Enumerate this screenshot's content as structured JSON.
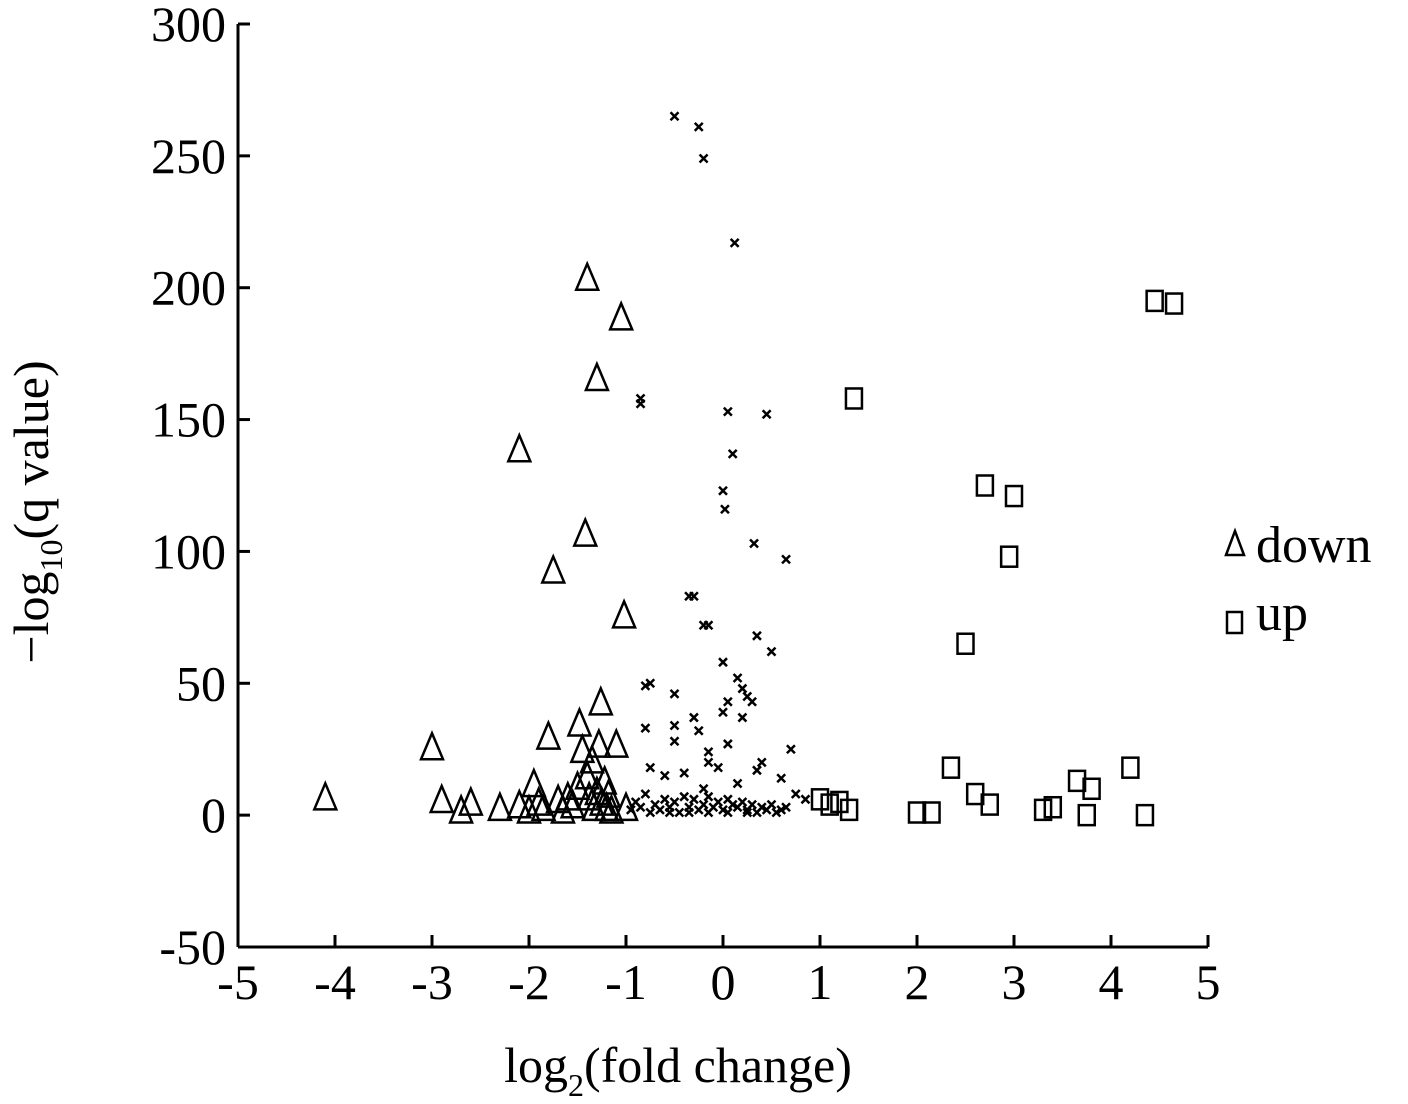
{
  "chart_data": {
    "type": "scatter",
    "title": "",
    "xlabel": {
      "prefix": "log",
      "sub": "2",
      "suffix": "(fold change)"
    },
    "ylabel": {
      "prefix": "−log",
      "sub": "10",
      "suffix": "(q value)"
    },
    "xlim": [
      -5,
      5
    ],
    "ylim": [
      -50,
      300
    ],
    "x_ticks": [
      -5,
      -4,
      -3,
      -2,
      -1,
      0,
      1,
      2,
      3,
      4,
      5
    ],
    "x_tick_labels": [
      "-5",
      "-4",
      "-3",
      "-2",
      "-1",
      "0",
      "1",
      "2",
      "3",
      "4",
      "5"
    ],
    "y_ticks": [
      -50,
      0,
      50,
      100,
      150,
      200,
      250,
      300
    ],
    "y_tick_labels": [
      "-50",
      "0",
      "50",
      "100",
      "150",
      "200",
      "250",
      "300"
    ],
    "grid": false,
    "legend_position": "right",
    "series": [
      {
        "name": "down",
        "marker": "triangle",
        "points": [
          [
            -4.1,
            6
          ],
          [
            -3.0,
            25
          ],
          [
            -2.9,
            5
          ],
          [
            -2.7,
            1
          ],
          [
            -2.6,
            4
          ],
          [
            -2.3,
            2
          ],
          [
            -2.1,
            138
          ],
          [
            -2.1,
            3
          ],
          [
            -2.0,
            1
          ],
          [
            -1.95,
            11
          ],
          [
            -1.9,
            4
          ],
          [
            -1.85,
            2
          ],
          [
            -1.8,
            29
          ],
          [
            -1.75,
            92
          ],
          [
            -1.7,
            5
          ],
          [
            -1.65,
            1
          ],
          [
            -1.6,
            6
          ],
          [
            -1.55,
            3
          ],
          [
            -1.5,
            10
          ],
          [
            -1.48,
            34
          ],
          [
            -1.45,
            24
          ],
          [
            -1.42,
            106
          ],
          [
            -1.4,
            203
          ],
          [
            -1.4,
            14
          ],
          [
            -1.38,
            6
          ],
          [
            -1.35,
            20
          ],
          [
            -1.33,
            2
          ],
          [
            -1.3,
            165
          ],
          [
            -1.3,
            8
          ],
          [
            -1.28,
            26
          ],
          [
            -1.26,
            42
          ],
          [
            -1.25,
            4
          ],
          [
            -1.22,
            12
          ],
          [
            -1.2,
            2
          ],
          [
            -1.18,
            7
          ],
          [
            -1.15,
            1
          ],
          [
            -1.1,
            26
          ],
          [
            -1.05,
            188
          ],
          [
            -1.02,
            75
          ],
          [
            -1.0,
            2
          ]
        ]
      },
      {
        "name": "up",
        "marker": "square",
        "points": [
          [
            1.0,
            6
          ],
          [
            1.1,
            4
          ],
          [
            1.2,
            5
          ],
          [
            1.3,
            2
          ],
          [
            1.35,
            158
          ],
          [
            2.0,
            1
          ],
          [
            2.15,
            1
          ],
          [
            2.35,
            18
          ],
          [
            2.5,
            65
          ],
          [
            2.6,
            8
          ],
          [
            2.7,
            125
          ],
          [
            2.75,
            4
          ],
          [
            2.95,
            98
          ],
          [
            3.0,
            121
          ],
          [
            3.3,
            2
          ],
          [
            3.4,
            3
          ],
          [
            3.65,
            13
          ],
          [
            3.75,
            0
          ],
          [
            3.8,
            10
          ],
          [
            4.2,
            18
          ],
          [
            4.35,
            0
          ],
          [
            4.45,
            195
          ],
          [
            4.65,
            194
          ]
        ]
      },
      {
        "name": "",
        "marker": "x",
        "points": [
          [
            -0.5,
            265
          ],
          [
            -0.25,
            261
          ],
          [
            -0.2,
            249
          ],
          [
            0.12,
            217
          ],
          [
            -0.85,
            158
          ],
          [
            -0.85,
            156
          ],
          [
            0.05,
            153
          ],
          [
            0.45,
            152
          ],
          [
            0.1,
            137
          ],
          [
            0.0,
            123
          ],
          [
            0.02,
            116
          ],
          [
            0.32,
            103
          ],
          [
            0.65,
            97
          ],
          [
            -0.35,
            83
          ],
          [
            -0.3,
            83
          ],
          [
            -0.2,
            72
          ],
          [
            -0.15,
            72
          ],
          [
            0.35,
            68
          ],
          [
            0.5,
            62
          ],
          [
            0.0,
            58
          ],
          [
            0.15,
            52
          ],
          [
            0.2,
            48
          ],
          [
            0.25,
            45
          ],
          [
            0.3,
            43
          ],
          [
            -0.8,
            49
          ],
          [
            -0.75,
            50
          ],
          [
            -0.5,
            46
          ],
          [
            -0.5,
            34
          ],
          [
            -0.3,
            37
          ],
          [
            -0.25,
            32
          ],
          [
            0.0,
            39
          ],
          [
            0.05,
            43
          ],
          [
            0.2,
            37
          ],
          [
            0.05,
            27
          ],
          [
            -0.8,
            33
          ],
          [
            -0.5,
            28
          ],
          [
            -0.15,
            24
          ],
          [
            0.7,
            25
          ],
          [
            -0.4,
            16
          ],
          [
            -0.05,
            18
          ],
          [
            -0.15,
            20
          ],
          [
            0.4,
            20
          ],
          [
            -0.75,
            18
          ],
          [
            -0.6,
            15
          ],
          [
            0.6,
            14
          ],
          [
            0.35,
            17
          ],
          [
            0.15,
            12
          ],
          [
            -0.2,
            10
          ],
          [
            0.75,
            8
          ],
          [
            0.85,
            6
          ],
          [
            -0.9,
            5
          ],
          [
            -0.85,
            3
          ],
          [
            -0.8,
            8
          ],
          [
            -0.7,
            4
          ],
          [
            -0.65,
            2
          ],
          [
            -0.6,
            6
          ],
          [
            -0.55,
            3
          ],
          [
            -0.5,
            5
          ],
          [
            -0.45,
            1
          ],
          [
            -0.4,
            7
          ],
          [
            -0.35,
            3
          ],
          [
            -0.3,
            6
          ],
          [
            -0.25,
            2
          ],
          [
            -0.2,
            4
          ],
          [
            -0.15,
            7
          ],
          [
            -0.1,
            3
          ],
          [
            -0.05,
            5
          ],
          [
            0.0,
            2
          ],
          [
            0.05,
            6
          ],
          [
            0.1,
            4
          ],
          [
            0.15,
            3
          ],
          [
            0.2,
            5
          ],
          [
            0.25,
            2
          ],
          [
            0.3,
            4
          ],
          [
            0.35,
            1
          ],
          [
            0.4,
            3
          ],
          [
            0.45,
            2
          ],
          [
            0.5,
            4
          ],
          [
            0.55,
            1
          ],
          [
            0.6,
            2
          ],
          [
            0.65,
            3
          ],
          [
            -0.95,
            2
          ],
          [
            -0.75,
            1
          ],
          [
            -0.55,
            1
          ],
          [
            -0.35,
            1
          ],
          [
            -0.15,
            1
          ],
          [
            0.05,
            1
          ],
          [
            0.25,
            1
          ]
        ]
      }
    ]
  }
}
